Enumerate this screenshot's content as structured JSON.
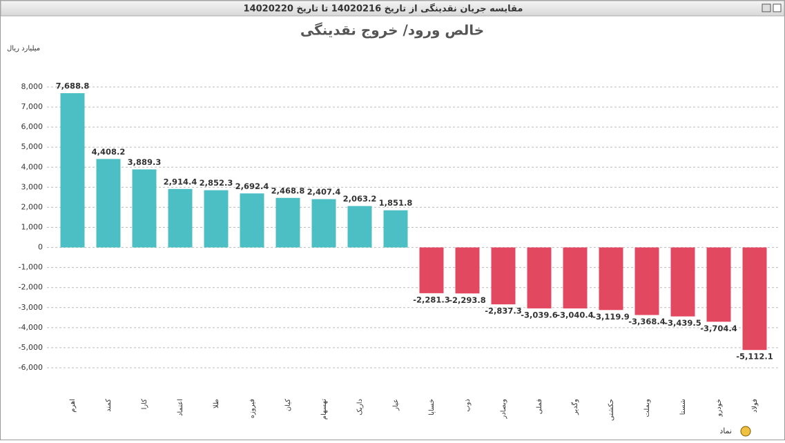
{
  "window_title": "مقایسه جریان نقدینگی از تاریخ 14020216 تا تاریخ 14020220",
  "chart_data": {
    "type": "bar",
    "title": "خالص ورود/ خروج نقدینگی",
    "y_label": "میلیارد ریال",
    "x_label": "نماد",
    "categories": [
      "اهرم",
      "کمند",
      "کارا",
      "اعتماد",
      "طلا",
      "فیروزه",
      "کیان",
      "تهسهام",
      "داریک",
      "عیار",
      "خساپا",
      "ذوب",
      "وبصادر",
      "فملی",
      "وگدیر",
      "حکشتی",
      "وبملت",
      "شستا",
      "خودرو",
      "فولاد"
    ],
    "values": [
      7688.8,
      4408.2,
      3889.3,
      2914.4,
      2852.3,
      2692.4,
      2468.8,
      2407.4,
      2063.2,
      1851.8,
      -2281.3,
      -2293.8,
      -2837.3,
      -3039.6,
      -3040.4,
      -3119.9,
      -3368.4,
      -3439.5,
      -3704.4,
      -5112.1
    ],
    "value_labels": [
      "7,688.8",
      "4,408.2",
      "3,889.3",
      "2,914.4",
      "2,852.3",
      "2,692.4",
      "2,468.8",
      "2,407.4",
      "2,063.2",
      "1,851.8",
      "-2,281.3",
      "-2,293.8",
      "-2,837.3",
      "-3,039.6",
      "-3,040.4",
      "-3,119.9",
      "-3,368.4",
      "-3,439.5",
      "-3,704.4",
      "-5,112.1"
    ],
    "positive_color": "#4bbfc4",
    "negative_color": "#e2485f",
    "ylim": [
      -6000,
      8000
    ],
    "yticks": [
      {
        "value": 8000,
        "label": "8,000"
      },
      {
        "value": 7000,
        "label": "7,000"
      },
      {
        "value": 6000,
        "label": "6,000"
      },
      {
        "value": 5000,
        "label": "5,000"
      },
      {
        "value": 4000,
        "label": "4,000"
      },
      {
        "value": 3000,
        "label": "3,000"
      },
      {
        "value": 2000,
        "label": "2,000"
      },
      {
        "value": 1000,
        "label": "1,000"
      },
      0,
      {
        "value": -1000,
        "label": "-1,000"
      },
      {
        "value": -2000,
        "label": "-2,000"
      },
      {
        "value": -3000,
        "label": "-3,000"
      },
      {
        "value": -4000,
        "label": "-4,000"
      },
      {
        "value": -5000,
        "label": "-5,000"
      },
      {
        "value": -6000,
        "label": "-6,000"
      }
    ],
    "grid": true
  }
}
